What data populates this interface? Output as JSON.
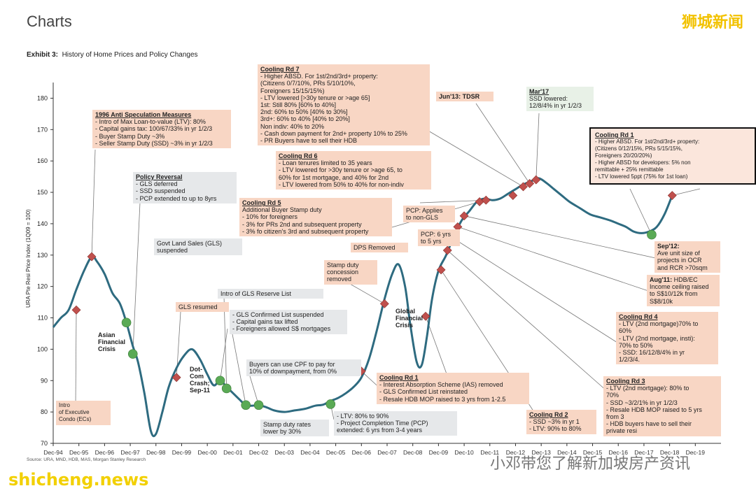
{
  "header": {
    "title": "Charts",
    "brand_cn": "狮城新闻",
    "exhibit_num": "Exhibit 3:",
    "exhibit_title": "History of Home Prices and Policy Changes",
    "source": "Source: URA, MND, HDB, MAS, Morgan Stanley Research",
    "watermark_en": "shicheng.news",
    "watermark_cn": "小邓带您了解新加坡房产资讯"
  },
  "colors": {
    "line": "#2e6b80",
    "diamond": "#c0504d",
    "circle": "#5aaa55",
    "peach": "#f8d6c4",
    "grey": "#e6e8ea"
  },
  "chart_data": {
    "type": "line",
    "ylabel": "URA Pte Resi Price Index (1Q09 = 100)",
    "ylim": [
      70,
      185
    ],
    "yticks": [
      70,
      80,
      90,
      100,
      110,
      120,
      130,
      140,
      150,
      160,
      170,
      180
    ],
    "xlim": [
      1994.0,
      2020.0
    ],
    "xticks": [
      {
        "x": 1994,
        "label": "Dec-94"
      },
      {
        "x": 1995,
        "label": "Dec-95"
      },
      {
        "x": 1996,
        "label": "Dec-96"
      },
      {
        "x": 1997,
        "label": "Dec-97"
      },
      {
        "x": 1998,
        "label": "Dec-98"
      },
      {
        "x": 1999,
        "label": "Dec-99"
      },
      {
        "x": 2000,
        "label": "Dec-00"
      },
      {
        "x": 2001,
        "label": "Dec-01"
      },
      {
        "x": 2002,
        "label": "Dec-02"
      },
      {
        "x": 2003,
        "label": "Dec-03"
      },
      {
        "x": 2004,
        "label": "Dec-04"
      },
      {
        "x": 2005,
        "label": "Dec-05"
      },
      {
        "x": 2006,
        "label": "Dec-06"
      },
      {
        "x": 2007,
        "label": "Dec-07"
      },
      {
        "x": 2008,
        "label": "Dec-08"
      },
      {
        "x": 2009,
        "label": "Dec-09"
      },
      {
        "x": 2010,
        "label": "Dec-10"
      },
      {
        "x": 2011,
        "label": "Dec-11"
      },
      {
        "x": 2012,
        "label": "Dec-12"
      },
      {
        "x": 2013,
        "label": "Dec-13"
      },
      {
        "x": 2014,
        "label": "Dec-14"
      },
      {
        "x": 2015,
        "label": "Dec-15"
      },
      {
        "x": 2016,
        "label": "Dec-16"
      },
      {
        "x": 2017,
        "label": "Dec-17"
      },
      {
        "x": 2018,
        "label": "Dec-18"
      },
      {
        "x": 2019,
        "label": "Dec-19"
      }
    ],
    "x": [
      1994.0,
      1994.3,
      1994.6,
      1994.9,
      1995.2,
      1995.5,
      1995.7,
      1996.0,
      1996.3,
      1996.6,
      1996.85,
      1997.1,
      1997.3,
      1997.55,
      1997.8,
      1998.0,
      1998.25,
      1998.5,
      1998.8,
      1999.1,
      1999.4,
      1999.7,
      2000.0,
      2000.25,
      2000.5,
      2000.75,
      2001.0,
      2001.25,
      2001.5,
      2001.75,
      2002.0,
      2002.3,
      2002.6,
      2003.0,
      2003.4,
      2003.8,
      2004.2,
      2004.5,
      2004.8,
      2005.1,
      2005.4,
      2005.7,
      2006.0,
      2006.3,
      2006.6,
      2006.9,
      2007.2,
      2007.45,
      2007.7,
      2007.9,
      2008.15,
      2008.35,
      2008.55,
      2008.75,
      2009.0,
      2009.3,
      2009.6,
      2009.9,
      2010.2,
      2010.5,
      2010.8,
      2011.1,
      2011.4,
      2011.7,
      2012.0,
      2012.3,
      2012.6,
      2012.9,
      2013.2,
      2013.5,
      2013.8,
      2014.1,
      2014.5,
      2014.9,
      2015.3,
      2015.7,
      2016.0,
      2016.3,
      2016.6,
      2016.9,
      2017.2,
      2017.5,
      2017.8,
      2018.1
    ],
    "values": [
      107,
      110,
      112.5,
      119,
      125,
      129.5,
      128,
      124,
      118,
      114.5,
      108.5,
      101,
      96,
      86,
      74,
      73,
      80,
      88,
      94,
      98,
      100,
      97,
      92,
      88.5,
      90,
      88,
      86,
      84,
      82.2,
      82,
      82.2,
      81.5,
      80.5,
      80,
      80.5,
      81,
      82,
      82.3,
      83.5,
      84.5,
      86,
      88,
      91,
      97,
      106,
      116,
      124,
      127,
      120,
      108,
      96,
      95,
      104,
      116,
      125,
      130,
      136,
      141,
      144,
      147,
      148,
      147.5,
      148,
      149.5,
      151,
      152.5,
      153.5,
      154.5,
      153,
      151,
      149,
      147,
      145,
      143,
      142,
      141,
      140,
      139,
      137.5,
      137,
      137.5,
      139,
      143,
      149
    ],
    "diamonds": [
      {
        "x": 1994.9,
        "y": 112.5
      },
      {
        "x": 1995.5,
        "y": 129.5
      },
      {
        "x": 1998.8,
        "y": 91
      },
      {
        "x": 2006.0,
        "y": 93
      },
      {
        "x": 2006.9,
        "y": 114.5
      },
      {
        "x": 2008.5,
        "y": 110.5
      },
      {
        "x": 2009.1,
        "y": 125.3
      },
      {
        "x": 2009.35,
        "y": 131.5
      },
      {
        "x": 2009.55,
        "y": 135.5
      },
      {
        "x": 2009.75,
        "y": 139
      },
      {
        "x": 2010.0,
        "y": 142.5
      },
      {
        "x": 2010.6,
        "y": 147
      },
      {
        "x": 2010.85,
        "y": 147.5
      },
      {
        "x": 2011.9,
        "y": 149
      },
      {
        "x": 2012.3,
        "y": 151.8
      },
      {
        "x": 2012.55,
        "y": 152.8
      },
      {
        "x": 2012.8,
        "y": 154
      },
      {
        "x": 2018.1,
        "y": 149
      }
    ],
    "circles": [
      {
        "x": 1996.85,
        "y": 108.5
      },
      {
        "x": 1997.1,
        "y": 98.5
      },
      {
        "x": 2000.5,
        "y": 90
      },
      {
        "x": 2000.75,
        "y": 87.5
      },
      {
        "x": 2001.5,
        "y": 82.2
      },
      {
        "x": 2002.0,
        "y": 82.2
      },
      {
        "x": 2004.8,
        "y": 82.5
      },
      {
        "x": 2017.3,
        "y": 136.5
      }
    ]
  },
  "annotations": {
    "a1996_title": "1996 Anti Speculation Measures",
    "a1996_body": "- Intro of Max Loan-to-value (LTV): 80%\n- Capital gains tax: 100/67/33% in yr 1/2/3\n- Buyer Stamp Duty ~3%\n- Seller Stamp Duty (SSD) ~3% in yr 1/2/3",
    "policy_rev_title": "Policy Reversal",
    "policy_rev_body": "- GLS deferred\n- SSD suspended\n- PCP extended to up to 8yrs",
    "gls_susp": "Govt Land Sales (GLS)\nsuspended",
    "gls_reserve": "Intro of GLS Reserve List",
    "gls_resumed": "GLS resumed",
    "gls_confirmed": "- GLS Confirmed List suspended\n- Capital gains tax lifted\n- Foreigners allowed S$ mortgages",
    "cpf": "Buyers can use CPF to pay for\n10% of downpayment, from 0%",
    "stamp_lower": "Stamp duty rates\nlower by 30%",
    "ltv90": "- LTV: 80% to 90%\n- Project Completion Time (PCP)\nextended: 6 yrs from 3-4 years",
    "stamp_conc": "Stamp duty\nconcession\nremoved",
    "dps": "DPS Removed",
    "exec_condo": "Intro\nof Executive\nCondo (ECs)",
    "asian": "Asian\nFinancial\nCrisis",
    "dotcom": "Dot-\nCom\nCrash;\nSep-11",
    "gfc": "Global\nFinancial\nCrisis",
    "rd5_title": "Cooling Rd 5",
    "rd5_body": "Additional Buyer Stamp duty\n- 10% for foreigners\n- 3% for PRs 2nd and subsequent property\n- 3% fo citizen's 3rd and subsequent property",
    "rd6_title": "Cooling Rd 6",
    "rd6_body": "- Loan tenures limited to 35 years\n- LTV lowered for >30y tenure or >age 65, to\n60% for 1st mortgage, and 40% for 2nd\n- LTV lowered from 50% to 40% for non-indiv",
    "rd7_title": "Cooling Rd 7",
    "rd7_body": "- Higher ABSD. For 1st/2nd/3rd+ property:\n(Citizens 0/7/10%, PRs 5/10/10%,\nForeigners 15/15/15%)\n- LTV lowered [>30y tenure or >age 65]\n1st: Still 80% [60% to 40%]\n2nd: 60% to 50% [40% to 30%]\n3rd+: 60% to 40% [40% to 20%]\nNon indiv: 40% to 20%\n- Cash down payment for 2nd+ property 10% to 25%\n- PR Buyers have to sell their HDB",
    "tdsr": "Jun'13: TDSR",
    "mar17_title": "Mar'17",
    "mar17_body": "SSD lowered:\n12/8/4% in yr 1/2/3",
    "rd1b_title": "Cooling Rd 1",
    "rd1b_body": "- Higher ABSD. For 1st/2nd/3rd+ property:\n(Citizens 0/12/15%, PRs 5/15/15%,\nForeigners 20/20/20%)\n- Higher ABSD for developers: 5% non\nremittable + 25% remittable\n- LTV lowered  5ppt (75% for 1st loan)",
    "pcp_nongls": "PCP: Applies\nto non-GLS",
    "pcp6": "PCP: 6 yrs\nto 5 yrs",
    "sep12_title": "Sep'12:",
    "sep12_body": "Ave unit size of\nprojects in OCR\nand RCR >70sqm",
    "aug11_title": "Aug'11:",
    "aug11_body": " HDB/EC\nIncome ceiling raised\nto S$10/12k from\nS$8/10k",
    "rd4_title": "Cooling Rd 4",
    "rd4_body": "- LTV (2nd mortgage)70% to\n60%\n- LTV (2nd mortgage, insti):\n70% to 50%\n- SSD: 16/12/8/4% in yr\n1/2/3/4.",
    "rd3_title": "Cooling Rd 3",
    "rd3_body": "- LTV (2nd mortgage): 80% to\n70%\n- SSD ~3/2/1% in yr 1/2/3\n- Resale HDB MOP raised to 5 yrs\nfrom 3\n- HDB buyers have to sell their\nprivate resi",
    "rd2_title": "Cooling Rd 2",
    "rd2_body": "- SSD ~3% in yr 1\n- LTV: 90% to 80%",
    "rd1a_title": "Cooling Rd 1",
    "rd1a_body": "- Interest Absorption Scheme (IAS) removed\n- GLS Confirmed List reinstated\n- Resale HDB MOP raised to 3 yrs from 1-2.5"
  }
}
